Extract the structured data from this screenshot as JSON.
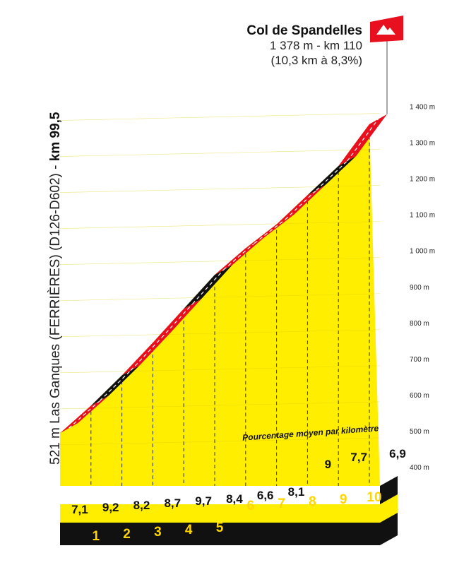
{
  "summit": {
    "name": "Col de Spandelles",
    "altitude_km": "1 378 m - km 110",
    "climb_stats": "(10,3 km à 8,3%)"
  },
  "start": {
    "label": "521 m Las Ganques (FERRIÈRES) (D126-D602) - ",
    "km": "km 99,5"
  },
  "caption": "Pourcentage moyen par kilomètre",
  "colors": {
    "fill": "#ffee00",
    "fill_side": "#f2c200",
    "road": "#e8101e",
    "steep_road": "#111111",
    "base": "#111111",
    "km_text": "#ffd500",
    "flag": "#e8101e"
  },
  "chart_data": {
    "type": "area",
    "title": "Col de Spandelles",
    "xlabel": "",
    "ylabel": "",
    "ylim": [
      400,
      1400
    ],
    "y_ticks": [
      400,
      500,
      600,
      700,
      800,
      900,
      1000,
      1100,
      1200,
      1300,
      1400
    ],
    "y_tick_labels": [
      "400 m",
      "500 m",
      "600 m",
      "700 m",
      "800 m",
      "900 m",
      "1 000 m",
      "1 100 m",
      "1 200 m",
      "1 300 m",
      "1 400 m"
    ],
    "x_km": [
      0,
      1,
      2,
      3,
      4,
      5,
      6,
      7,
      8,
      9,
      10
    ],
    "km_labels": [
      "1",
      "2",
      "3",
      "4",
      "5",
      "6",
      "7",
      "8",
      "9",
      "10"
    ],
    "elevation_m": [
      521,
      597,
      681,
      772,
      866,
      960,
      1034,
      1100,
      1181,
      1262,
      1378
    ],
    "grades": [
      "7,1",
      "9,2",
      "8,2",
      "8,7",
      "9,7",
      "8,4",
      "6,6",
      "8,1",
      "9",
      "7,7",
      "6,9"
    ],
    "steep_segments": [
      1,
      4,
      8
    ],
    "grid": "dashed vertical at each km"
  }
}
